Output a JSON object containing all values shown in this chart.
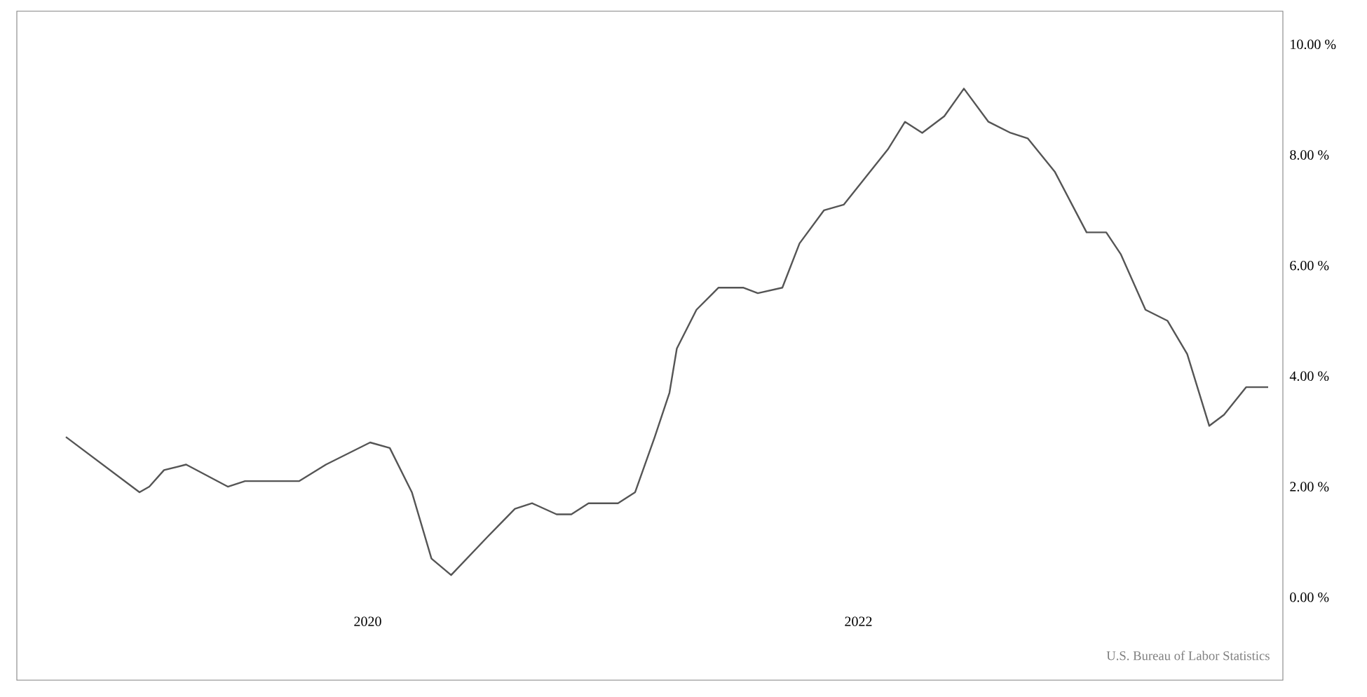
{
  "chart_data": {
    "type": "line",
    "color": "#555555",
    "x": [
      2018.77,
      2019.07,
      2019.11,
      2019.17,
      2019.26,
      2019.43,
      2019.5,
      2019.59,
      2019.72,
      2019.83,
      2020.01,
      2020.09,
      2020.18,
      2020.26,
      2020.34,
      2020.49,
      2020.6,
      2020.67,
      2020.77,
      2020.83,
      2020.9,
      2021.02,
      2021.09,
      2021.17,
      2021.23,
      2021.26,
      2021.34,
      2021.43,
      2021.53,
      2021.59,
      2021.69,
      2021.76,
      2021.86,
      2021.94,
      2022.03,
      2022.12,
      2022.19,
      2022.26,
      2022.35,
      2022.43,
      2022.53,
      2022.62,
      2022.69,
      2022.8,
      2022.93,
      2023.01,
      2023.07,
      2023.17,
      2023.26,
      2023.34,
      2023.43,
      2023.49,
      2023.58,
      2023.67
    ],
    "values": [
      2.9,
      1.9,
      2.0,
      2.3,
      2.4,
      2.0,
      2.1,
      2.1,
      2.1,
      2.4,
      2.8,
      2.7,
      1.9,
      0.7,
      0.4,
      1.1,
      1.6,
      1.7,
      1.5,
      1.5,
      1.7,
      1.7,
      1.9,
      2.9,
      3.7,
      4.5,
      5.2,
      5.6,
      5.6,
      5.5,
      5.6,
      6.4,
      7.0,
      7.1,
      7.6,
      8.1,
      8.6,
      8.4,
      8.7,
      9.2,
      8.6,
      8.4,
      8.3,
      7.7,
      6.6,
      6.6,
      6.2,
      5.2,
      5.0,
      4.4,
      3.1,
      3.3,
      3.8,
      3.8
    ],
    "xlim": [
      2018.57,
      2023.73
    ],
    "xticks": [
      2020,
      2022
    ],
    "ylim": [
      -1.5,
      10.6
    ],
    "yticks": [
      {
        "value": 0,
        "label": "0.00 %"
      },
      {
        "value": 2,
        "label": "2.00 %"
      },
      {
        "value": 4,
        "label": "4.00 %"
      },
      {
        "value": 6,
        "label": "6.00 %"
      },
      {
        "value": 8,
        "label": "8.00 %"
      },
      {
        "value": 10,
        "label": "10.00 %"
      }
    ],
    "marker": "none",
    "line_style": "solid",
    "annotations": [
      "U.S. Bureau of Labor Statistics"
    ]
  }
}
